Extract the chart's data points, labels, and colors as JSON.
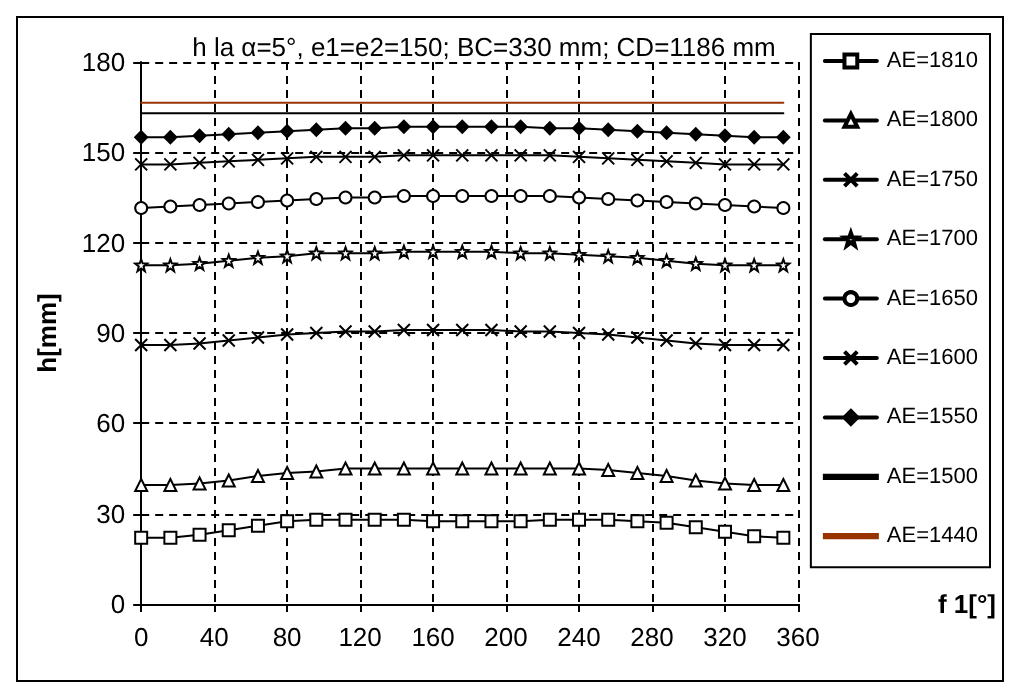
{
  "chart_data": {
    "type": "line",
    "title": "h la α=5°, e1=e2=150; BC=330 mm; CD=1186 mm",
    "xlabel": "f 1[°]",
    "ylabel": "h[mm]",
    "x": [
      0,
      16,
      32,
      48,
      64,
      80,
      96,
      112,
      128,
      144,
      160,
      176,
      192,
      208,
      224,
      240,
      256,
      272,
      288,
      304,
      320,
      336,
      352
    ],
    "xlim": [
      0,
      360
    ],
    "xticks": [
      0,
      40,
      80,
      120,
      160,
      200,
      240,
      280,
      320,
      360
    ],
    "ylim": [
      0,
      180
    ],
    "yticks": [
      0,
      30,
      60,
      90,
      120,
      150,
      180
    ],
    "grid": true,
    "legend": "right",
    "line_style": "solid",
    "series": [
      {
        "name": "AE=1810",
        "color": "#000000",
        "marker": "square",
        "values": [
          22,
          22,
          23,
          24.5,
          26,
          27.5,
          28,
          28,
          28,
          28,
          27.5,
          27.5,
          27.5,
          27.5,
          28,
          28,
          28,
          27.5,
          27,
          25.5,
          24,
          22.5,
          22
        ]
      },
      {
        "name": "AE=1800",
        "color": "#000000",
        "marker": "triangle",
        "values": [
          39.5,
          39.5,
          40,
          41,
          42.5,
          43.5,
          44,
          45,
          45,
          45,
          45,
          45,
          45,
          45,
          45,
          45,
          44.5,
          43.5,
          42.5,
          41,
          40,
          39.5,
          39.5
        ]
      },
      {
        "name": "AE=1750",
        "color": "#000000",
        "marker": "cross",
        "values": [
          86,
          86,
          86.5,
          87.5,
          88.5,
          89.5,
          90,
          90.5,
          90.5,
          91,
          91,
          91,
          91,
          90.5,
          90.5,
          90,
          89.5,
          88.5,
          87.5,
          86.5,
          86,
          86,
          86
        ]
      },
      {
        "name": "AE=1700",
        "color": "#000000",
        "marker": "star",
        "values": [
          112.5,
          112.5,
          113,
          114,
          115,
          115.5,
          116.5,
          116.5,
          116.5,
          117,
          117,
          117,
          117,
          116.5,
          116.5,
          116,
          115.5,
          115,
          114,
          113,
          112.5,
          112.5,
          112.5
        ]
      },
      {
        "name": "AE=1650",
        "color": "#000000",
        "marker": "circle",
        "values": [
          131.5,
          132,
          132.5,
          133,
          133.5,
          134,
          134.5,
          135,
          135,
          135.5,
          135.5,
          135.5,
          135.5,
          135.5,
          135.5,
          135,
          134.5,
          134,
          133.5,
          133,
          132.5,
          132,
          131.5
        ]
      },
      {
        "name": "AE=1600",
        "color": "#000000",
        "marker": "cross",
        "values": [
          146,
          146,
          146.5,
          147,
          147.5,
          148,
          148.5,
          148.5,
          148.5,
          149,
          149,
          149,
          149,
          149,
          149,
          148.5,
          148,
          147.5,
          147,
          146.5,
          146,
          146,
          146
        ]
      },
      {
        "name": "AE=1550",
        "color": "#000000",
        "marker": "diamond",
        "values": [
          155,
          155,
          155.5,
          156,
          156.5,
          157,
          157.5,
          158,
          158,
          158.5,
          158.5,
          158.5,
          158.5,
          158.5,
          158,
          158,
          157.5,
          157,
          156.5,
          156,
          155.5,
          155,
          155
        ]
      },
      {
        "name": "AE=1500",
        "color": "#000000",
        "marker": "none",
        "values": [
          163,
          163,
          163,
          163,
          163,
          163,
          163,
          163,
          163,
          163,
          163,
          163,
          163,
          163,
          163,
          163,
          163,
          163,
          163,
          163,
          163,
          163,
          163
        ]
      },
      {
        "name": "AE=1440",
        "color": "#993300",
        "marker": "none",
        "values": [
          166.5,
          166.5,
          166.5,
          166.5,
          166.5,
          166.5,
          166.5,
          166.5,
          166.5,
          166.5,
          166.5,
          166.5,
          166.5,
          166.5,
          166.5,
          166.5,
          166.5,
          166.5,
          166.5,
          166.5,
          166.5,
          166.5,
          166.5
        ]
      }
    ]
  }
}
